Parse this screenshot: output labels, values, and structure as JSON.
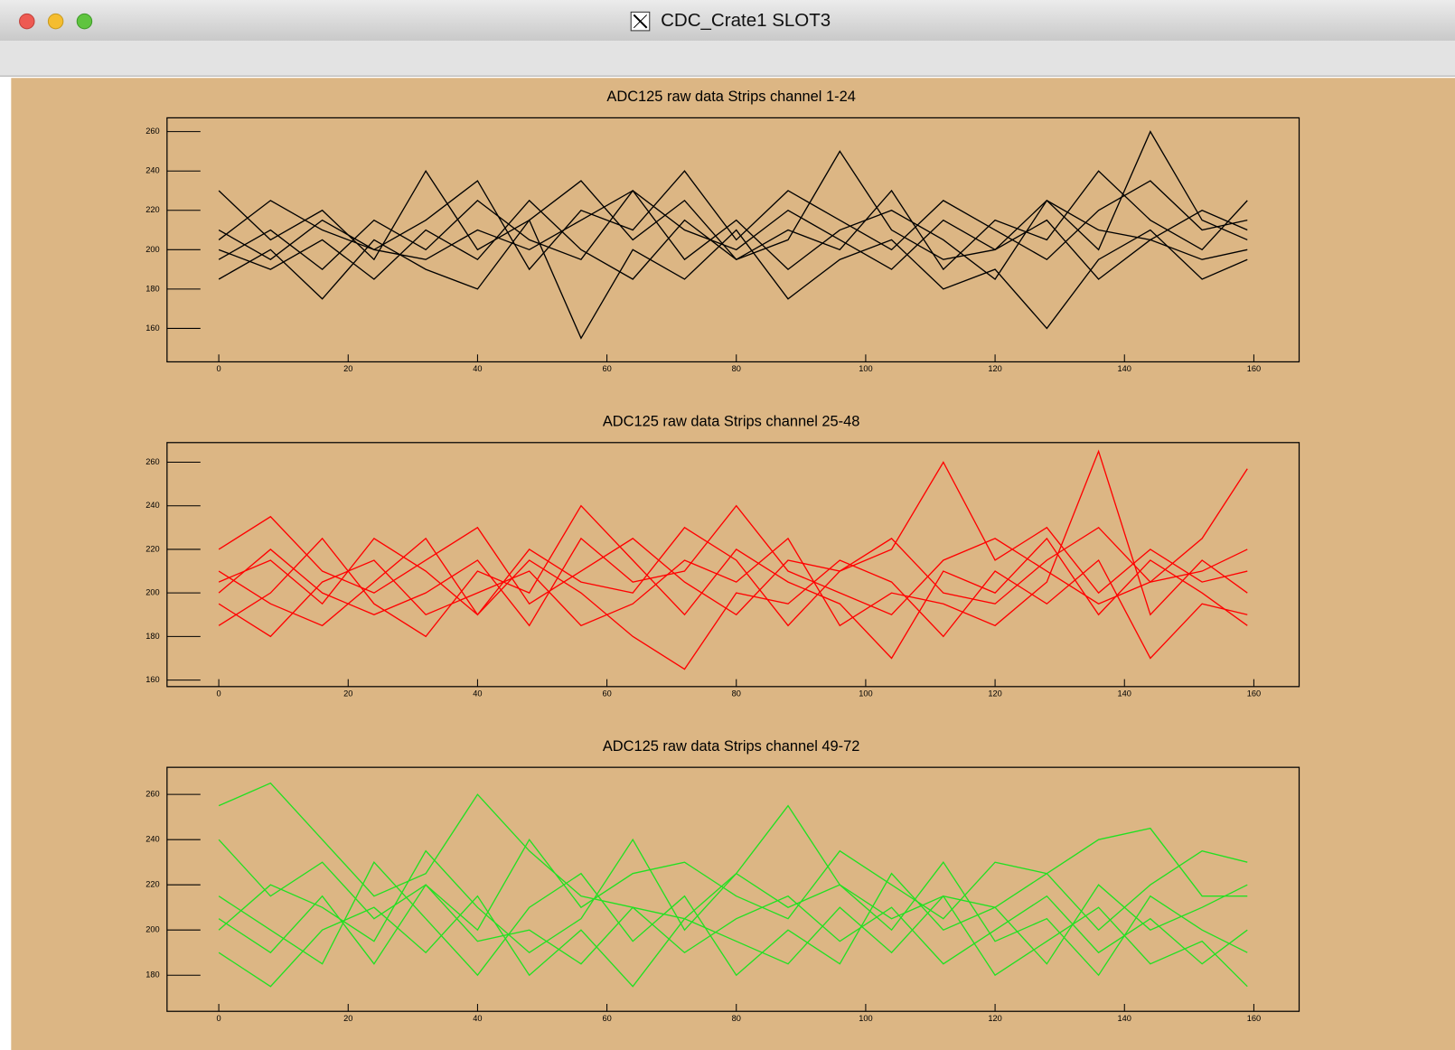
{
  "window": {
    "title": "CDC_Crate1 SLOT3"
  },
  "chart_data": [
    {
      "type": "line",
      "title": "ADC125 raw data Strips channel 1-24",
      "x": [
        0,
        8,
        16,
        24,
        32,
        40,
        48,
        56,
        64,
        72,
        80,
        88,
        96,
        104,
        112,
        120,
        128,
        136,
        144,
        152,
        159
      ],
      "series": [
        {
          "color": "#000000",
          "values": [
            195,
            210,
            190,
            215,
            200,
            225,
            205,
            195,
            230,
            210,
            200,
            220,
            205,
            190,
            215,
            200,
            225,
            210,
            205,
            220,
            210
          ]
        },
        {
          "color": "#000000",
          "values": [
            230,
            205,
            220,
            195,
            240,
            200,
            215,
            235,
            205,
            225,
            195,
            210,
            200,
            230,
            190,
            215,
            205,
            240,
            215,
            200,
            225
          ]
        },
        {
          "color": "#000000",
          "values": [
            185,
            200,
            175,
            205,
            190,
            180,
            215,
            155,
            200,
            185,
            210,
            175,
            195,
            205,
            180,
            190,
            160,
            195,
            210,
            185,
            195
          ]
        },
        {
          "color": "#000000",
          "values": [
            205,
            225,
            210,
            200,
            215,
            235,
            190,
            220,
            210,
            240,
            205,
            230,
            215,
            200,
            225,
            210,
            195,
            220,
            235,
            210,
            215
          ]
        },
        {
          "color": "#000000",
          "values": [
            200,
            190,
            205,
            185,
            210,
            195,
            225,
            200,
            185,
            215,
            195,
            205,
            250,
            210,
            195,
            200,
            215,
            185,
            205,
            195,
            200
          ]
        },
        {
          "color": "#000000",
          "values": [
            210,
            195,
            215,
            200,
            195,
            210,
            200,
            215,
            230,
            195,
            215,
            190,
            210,
            220,
            205,
            185,
            225,
            200,
            260,
            215,
            205
          ]
        }
      ],
      "xlim": [
        -8,
        167
      ],
      "xticks": [
        0,
        20,
        40,
        60,
        80,
        100,
        120,
        140,
        160
      ],
      "ylim": [
        143,
        267
      ],
      "yticks": [
        160,
        180,
        200,
        220,
        240,
        260
      ]
    },
    {
      "type": "line",
      "title": "ADC125 raw data Strips channel 25-48",
      "x": [
        0,
        8,
        16,
        24,
        32,
        40,
        48,
        56,
        64,
        72,
        80,
        88,
        96,
        104,
        112,
        120,
        128,
        136,
        144,
        152,
        159
      ],
      "series": [
        {
          "color": "#ff0000",
          "values": [
            205,
            215,
            195,
            225,
            210,
            190,
            220,
            205,
            200,
            230,
            215,
            185,
            210,
            225,
            200,
            195,
            215,
            230,
            205,
            210,
            220
          ]
        },
        {
          "color": "#ff0000",
          "values": [
            185,
            200,
            225,
            195,
            180,
            210,
            200,
            240,
            215,
            190,
            220,
            205,
            195,
            170,
            210,
            200,
            225,
            190,
            215,
            200,
            185
          ]
        },
        {
          "color": "#ff0000",
          "values": [
            220,
            235,
            210,
            200,
            215,
            230,
            195,
            210,
            225,
            205,
            190,
            215,
            210,
            220,
            260,
            215,
            230,
            200,
            220,
            205,
            210
          ]
        },
        {
          "color": "#ff0000",
          "values": [
            195,
            180,
            205,
            215,
            190,
            200,
            210,
            185,
            195,
            215,
            205,
            225,
            185,
            200,
            195,
            185,
            205,
            265,
            190,
            215,
            200
          ]
        },
        {
          "color": "#ff0000",
          "values": [
            210,
            195,
            185,
            205,
            225,
            190,
            215,
            200,
            180,
            165,
            200,
            195,
            215,
            205,
            180,
            210,
            195,
            215,
            170,
            195,
            190
          ]
        },
        {
          "color": "#ff0000",
          "values": [
            200,
            220,
            200,
            190,
            200,
            215,
            185,
            225,
            205,
            210,
            240,
            210,
            200,
            190,
            215,
            225,
            210,
            195,
            205,
            225,
            257
          ]
        }
      ],
      "xlim": [
        -8,
        167
      ],
      "xticks": [
        0,
        20,
        40,
        60,
        80,
        100,
        120,
        140,
        160
      ],
      "ylim": [
        157,
        269
      ],
      "yticks": [
        160,
        180,
        200,
        220,
        240,
        260
      ]
    },
    {
      "type": "line",
      "title": "ADC125 raw data Strips channel 49-72",
      "x": [
        0,
        8,
        16,
        24,
        32,
        40,
        48,
        56,
        64,
        72,
        80,
        88,
        96,
        104,
        112,
        120,
        128,
        136,
        144,
        152,
        159
      ],
      "series": [
        {
          "color": "#22e022",
          "values": [
            255,
            265,
            240,
            215,
            225,
            260,
            235,
            215,
            210,
            205,
            225,
            255,
            220,
            205,
            215,
            210,
            225,
            240,
            245,
            215,
            215
          ]
        },
        {
          "color": "#22e022",
          "values": [
            240,
            215,
            230,
            205,
            220,
            200,
            240,
            210,
            225,
            230,
            215,
            205,
            235,
            220,
            205,
            230,
            225,
            200,
            220,
            235,
            230
          ]
        },
        {
          "color": "#22e022",
          "values": [
            205,
            190,
            215,
            185,
            220,
            195,
            200,
            185,
            210,
            190,
            205,
            215,
            195,
            210,
            185,
            200,
            215,
            190,
            205,
            185,
            200
          ]
        },
        {
          "color": "#22e022",
          "values": [
            190,
            175,
            200,
            210,
            190,
            215,
            180,
            200,
            175,
            205,
            195,
            185,
            210,
            190,
            215,
            180,
            195,
            210,
            185,
            195,
            175
          ]
        },
        {
          "color": "#22e022",
          "values": [
            215,
            200,
            185,
            230,
            205,
            180,
            210,
            225,
            195,
            215,
            180,
            200,
            185,
            225,
            200,
            210,
            185,
            220,
            200,
            210,
            220
          ]
        },
        {
          "color": "#22e022",
          "values": [
            200,
            220,
            210,
            195,
            235,
            210,
            190,
            205,
            240,
            200,
            225,
            210,
            220,
            200,
            230,
            195,
            205,
            180,
            215,
            200,
            190
          ]
        }
      ],
      "xlim": [
        -8,
        167
      ],
      "xticks": [
        0,
        20,
        40,
        60,
        80,
        100,
        120,
        140,
        160
      ],
      "ylim": [
        164,
        272
      ],
      "yticks": [
        180,
        200,
        220,
        240,
        260
      ]
    }
  ]
}
